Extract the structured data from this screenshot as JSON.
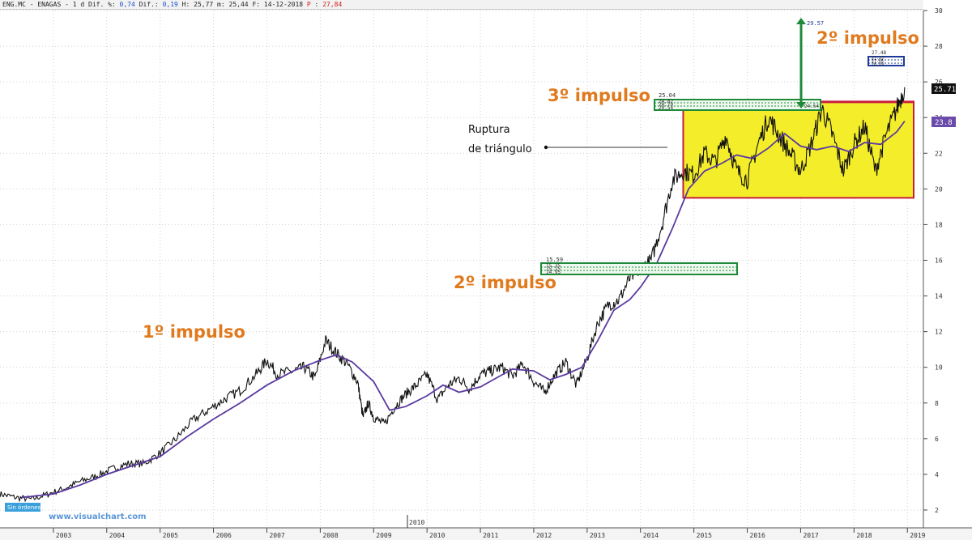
{
  "header": {
    "symbol": "ENG.MC",
    "name": "ENAGAS",
    "timeframe": "1 d",
    "dif_pct_label": "Dif. %:",
    "dif_pct_value": "0,74",
    "dif_label": "Dif.:",
    "dif_value": "0,19",
    "high_label": "H:",
    "high_value": "25,77",
    "low_label": "m:",
    "low_value": "25,44",
    "date_label": "F:",
    "date_value": "14-12-2018",
    "p_label": "P",
    "p_value": "27,84"
  },
  "footer": {
    "orders_badge": "Sin órdenes",
    "watermark": "www.visualchart.com",
    "mid_year_label": "2010"
  },
  "colors": {
    "price": "#111111",
    "moving_average": "#5a3aa0",
    "annotation": "#e07a1e",
    "range_fill": "#f4ee2a",
    "range_border": "#c81e3c",
    "level_box": "#1e8a3a",
    "target_box": "#1e3a9a",
    "last_price_badge": "#111111",
    "ma_badge": "#6a4aaa"
  },
  "annotations": {
    "impulse1": "1º impulso",
    "impulse2": "2º impulso",
    "impulse3": "3º impulso",
    "impulse2_top": "2º impulso",
    "breakout_line1": "Ruptura",
    "breakout_line2": "de triángulo"
  },
  "levels": {
    "box2_top": "15.59",
    "box2_a": "15.35",
    "box2_b": "15.15",
    "box2_c": "14.95",
    "box3_top": "25.04",
    "box3_a": "24.82",
    "box3_b": "24.70",
    "box3_c": "24.54",
    "box3_right": "24.54",
    "target_arrow": "29.57",
    "target_top": "27.48",
    "target_a": "27.25",
    "target_b": "27.05",
    "target_c": "26.89",
    "last_price": "25.71",
    "ma_value": "23.8"
  },
  "chart_data": {
    "type": "line",
    "title": "ENG.MC - ENAGAS",
    "xlabel": "",
    "ylabel": "",
    "x_ticks": [
      "2003",
      "2004",
      "2005",
      "2006",
      "2007",
      "2008",
      "2009",
      "2010",
      "2011",
      "2012",
      "2013",
      "2014",
      "2015",
      "2016",
      "2017",
      "2018",
      "2019"
    ],
    "y_ticks": [
      2,
      4,
      6,
      8,
      10,
      12,
      14,
      16,
      18,
      20,
      22,
      24,
      26,
      28,
      30
    ],
    "ylim": [
      1,
      30
    ],
    "xlim": [
      2002.0,
      2019.3
    ],
    "grid": true,
    "series": [
      {
        "values_note": "",
        "x": [
          2002.0,
          2002.3,
          2002.6,
          2002.9,
          2003.2,
          2003.5,
          2003.8,
          2004.1,
          2004.4,
          2004.7,
          2005.0,
          2005.3,
          2005.6,
          2005.9,
          2006.2,
          2006.5,
          2006.8,
          2007.0,
          2007.2,
          2007.5,
          2007.7,
          2007.9,
          2008.1,
          2008.3,
          2008.5,
          2008.7,
          2008.8,
          2008.9,
          2009.0,
          2009.2,
          2009.4,
          2009.6,
          2009.8,
          2010.0,
          2010.2,
          2010.4,
          2010.6,
          2010.8,
          2011.0,
          2011.2,
          2011.4,
          2011.6,
          2011.8,
          2012.0,
          2012.2,
          2012.4,
          2012.6,
          2012.8,
          2013.0,
          2013.2,
          2013.4,
          2013.6,
          2013.8,
          2014.0,
          2014.2,
          2014.4,
          2014.6,
          2014.8,
          2015.0,
          2015.2,
          2015.4,
          2015.6,
          2015.8,
          2016.0,
          2016.2,
          2016.4,
          2016.6,
          2016.8,
          2017.0,
          2017.2,
          2017.4,
          2017.6,
          2017.8,
          2018.0,
          2018.2,
          2018.4,
          2018.6,
          2018.8,
          2018.95
        ],
        "y": [
          2.9,
          2.7,
          2.6,
          2.9,
          3.2,
          3.6,
          3.9,
          4.3,
          4.6,
          4.6,
          5.2,
          6.0,
          7.0,
          7.6,
          8.2,
          8.7,
          9.6,
          10.4,
          9.6,
          9.8,
          10.0,
          9.4,
          11.5,
          10.8,
          10.2,
          9.2,
          7.2,
          8.0,
          7.2,
          6.8,
          7.8,
          8.5,
          9.0,
          9.6,
          8.2,
          9.0,
          9.4,
          8.8,
          9.6,
          9.8,
          10.0,
          9.5,
          10.2,
          9.2,
          8.6,
          9.6,
          10.3,
          9.0,
          10.5,
          12.5,
          13.5,
          13.8,
          15.0,
          15.5,
          16.0,
          18.0,
          20.5,
          21.0,
          20.8,
          22.0,
          21.5,
          23.0,
          21.0,
          20.5,
          22.5,
          24.0,
          23.0,
          22.0,
          21.0,
          22.5,
          24.5,
          23.0,
          21.0,
          22.5,
          23.5,
          21.0,
          23.0,
          24.5,
          25.7
        ]
      },
      {
        "x": [
          2002.4,
          2003.0,
          2003.5,
          2004.0,
          2004.5,
          2005.0,
          2005.5,
          2006.0,
          2006.5,
          2007.0,
          2007.5,
          2008.0,
          2008.3,
          2008.6,
          2009.0,
          2009.3,
          2009.6,
          2010.0,
          2010.3,
          2010.6,
          2011.0,
          2011.3,
          2011.6,
          2012.0,
          2012.3,
          2012.6,
          2012.9,
          2013.2,
          2013.5,
          2013.8,
          2014.0,
          2014.3,
          2014.6,
          2014.9,
          2015.2,
          2015.5,
          2015.8,
          2016.1,
          2016.4,
          2016.7,
          2017.0,
          2017.3,
          2017.6,
          2017.9,
          2018.2,
          2018.5,
          2018.8,
          2018.95
        ],
        "y": [
          2.7,
          2.9,
          3.4,
          4.0,
          4.5,
          5.0,
          6.1,
          7.1,
          8.0,
          9.0,
          9.8,
          10.4,
          10.7,
          10.3,
          9.2,
          7.6,
          7.8,
          8.4,
          9.0,
          8.6,
          8.9,
          9.4,
          9.9,
          9.8,
          9.3,
          9.6,
          10.0,
          11.5,
          13.2,
          13.8,
          14.5,
          15.8,
          17.8,
          20.0,
          21.0,
          21.4,
          21.9,
          21.7,
          22.3,
          23.1,
          22.4,
          22.2,
          22.4,
          22.1,
          22.6,
          22.5,
          23.2,
          23.8
        ]
      }
    ],
    "highlighted_range": {
      "x": [
        2014.8,
        2019.3
      ],
      "y": [
        19.5,
        24.9
      ]
    }
  }
}
